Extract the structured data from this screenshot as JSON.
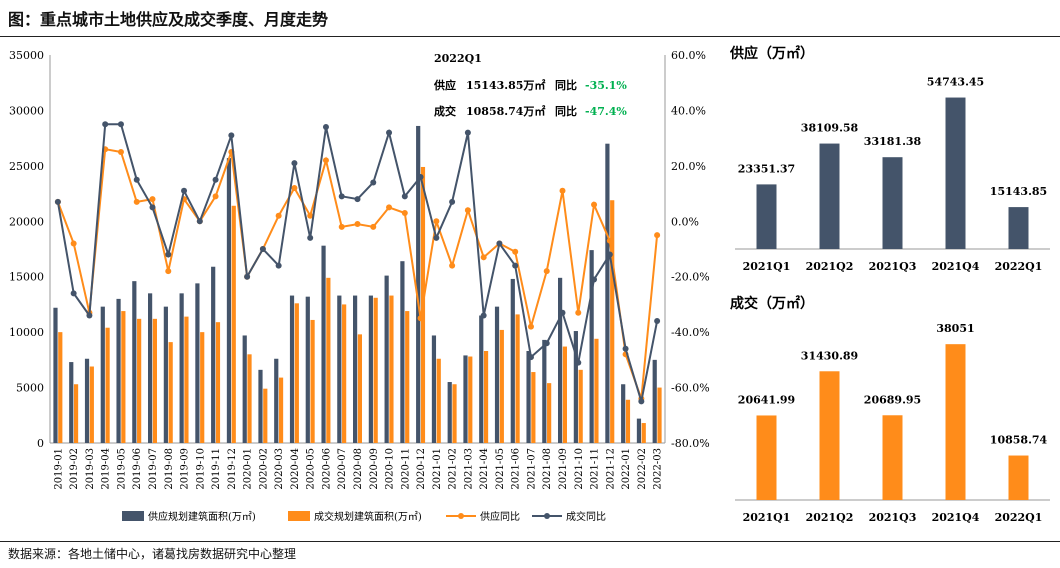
{
  "title": "图：重点城市土地供应及成交季度、月度走势",
  "source": "数据来源：各地土储中心，诸葛找房数据研究中心整理",
  "colors": {
    "supply": "#44546A",
    "deal": "#FF8C1A",
    "green": "#00B050"
  },
  "annotation": {
    "period": "2022Q1",
    "supply_label": "供应",
    "supply_value": "15143.85万㎡",
    "supply_yoy_label": "同比",
    "supply_yoy": "-35.1%",
    "deal_label": "成交",
    "deal_value": "10858.74万㎡",
    "deal_yoy_label": "同比",
    "deal_yoy": "-47.4%"
  },
  "chart_data": [
    {
      "type": "bar+line",
      "ylim": [
        0,
        35000
      ],
      "yticks": [
        0,
        5000,
        10000,
        15000,
        20000,
        25000,
        30000,
        35000
      ],
      "y2lim": [
        -80,
        60
      ],
      "y2ticks": [
        "-80.0%",
        "-60.0%",
        "-40.0%",
        "-20.0%",
        "0.0%",
        "20.0%",
        "40.0%",
        "60.0%"
      ],
      "categories": [
        "2019-01",
        "2019-02",
        "2019-03",
        "2019-04",
        "2019-05",
        "2019-06",
        "2019-07",
        "2019-08",
        "2019-09",
        "2019-10",
        "2019-11",
        "2019-12",
        "2020-01",
        "2020-02",
        "2020-03",
        "2020-04",
        "2020-05",
        "2020-06",
        "2020-07",
        "2020-08",
        "2020-09",
        "2020-10",
        "2020-11",
        "2020-12",
        "2021-01",
        "2021-02",
        "2021-03",
        "2021-04",
        "2021-05",
        "2021-06",
        "2021-07",
        "2021-08",
        "2021-09",
        "2021-10",
        "2021-11",
        "2021-12",
        "2022-01",
        "2022-02",
        "2022-03"
      ],
      "series": [
        {
          "name": "供应规划建筑面积(万㎡)",
          "kind": "bar",
          "axis": "left",
          "values": [
            12200,
            7300,
            7600,
            12300,
            13000,
            14600,
            13500,
            12300,
            13500,
            14400,
            15900,
            25700,
            9700,
            6600,
            7600,
            13300,
            13200,
            17800,
            13300,
            13300,
            13300,
            15100,
            16400,
            28600,
            9700,
            5500,
            7900,
            11500,
            12300,
            14800,
            8300,
            9300,
            14900,
            10100,
            17400,
            27000,
            5300,
            2200,
            7500
          ]
        },
        {
          "name": "成交规划建筑面积(万㎡)",
          "kind": "bar",
          "axis": "left",
          "values": [
            10000,
            5300,
            6900,
            10400,
            11900,
            11200,
            11200,
            9100,
            11400,
            10000,
            10900,
            21400,
            8000,
            4900,
            5900,
            12600,
            11100,
            14900,
            12500,
            9800,
            13100,
            13300,
            11900,
            24900,
            7600,
            5300,
            7800,
            8300,
            10200,
            11600,
            6400,
            5400,
            8700,
            6600,
            9400,
            21900,
            3900,
            1800,
            5000
          ]
        },
        {
          "name": "供应同比",
          "kind": "line",
          "axis": "right",
          "values": [
            7,
            -8,
            -33,
            26,
            25,
            7,
            8,
            -18,
            8,
            0,
            9,
            25,
            -20,
            -10,
            2,
            12,
            2,
            22,
            -2,
            -1,
            -2,
            5,
            3,
            -35,
            0,
            -16,
            4,
            -13,
            -8,
            -11,
            -38,
            -18,
            11,
            -33,
            6,
            -7,
            -48,
            -64,
            -5
          ]
        },
        {
          "name": "成交同比",
          "kind": "line",
          "axis": "right",
          "values": [
            7,
            -26,
            -34,
            35,
            35,
            15,
            5,
            -12,
            11,
            0,
            15,
            31,
            -20,
            -10,
            -16,
            21,
            -6,
            34,
            9,
            8,
            14,
            32,
            9,
            16,
            -6,
            7,
            32,
            -34,
            -8,
            -16,
            -49,
            -44,
            -33,
            -51,
            -21,
            -12,
            -46,
            -65,
            -36
          ]
        }
      ]
    },
    {
      "type": "bar",
      "title": "供应（万㎡）",
      "categories": [
        "2021Q1",
        "2021Q2",
        "2021Q3",
        "2021Q4",
        "2022Q1"
      ],
      "values": [
        23351.37,
        38109.58,
        33181.38,
        54743.45,
        15143.85
      ],
      "value_labels": [
        "23351.37",
        "38109.58",
        "33181.38",
        "54743.45",
        "15143.85"
      ],
      "ylim": [
        0,
        60000
      ]
    },
    {
      "type": "bar",
      "title": "成交（万㎡）",
      "categories": [
        "2021Q1",
        "2021Q2",
        "2021Q3",
        "2021Q4",
        "2022Q1"
      ],
      "values": [
        20641.99,
        31430.89,
        20689.95,
        38051,
        10858.74
      ],
      "value_labels": [
        "20641.99",
        "31430.89",
        "20689.95",
        "38051",
        "10858.74"
      ],
      "ylim": [
        0,
        42000
      ]
    }
  ]
}
